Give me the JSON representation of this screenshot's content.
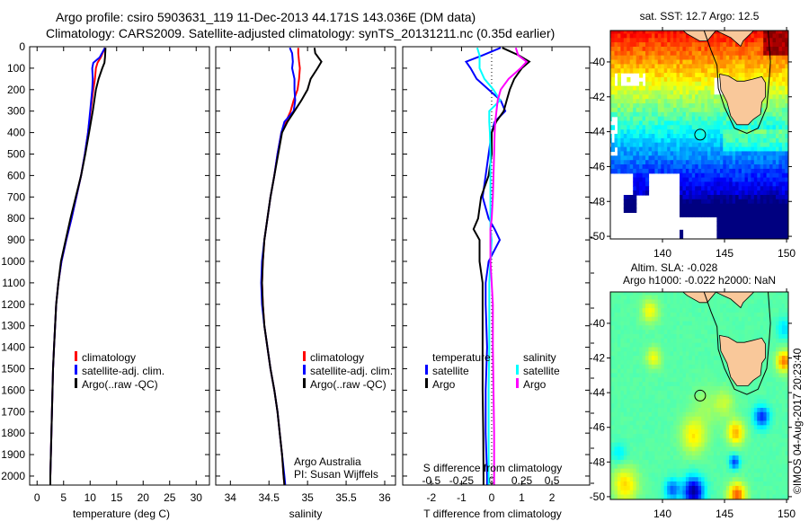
{
  "header": {
    "title_line1": "Argo profile: csiro 5903631_119 11-Dec-2013 44.171S 143.036E (DM data)",
    "title_line2": "Climatology: CARS2009. Satellite-adjusted climatology: synTS_20131211.nc (0.35d earlier)"
  },
  "credit": {
    "org_line1": "Argo Australia",
    "org_line2": "PI: Susan Wijffels",
    "stamp": "©IMOS 04-Aug-2017 20:23:40"
  },
  "chart_data": [
    {
      "id": "temperature",
      "type": "line",
      "xlabel": "temperature (deg C)",
      "ylabel": "",
      "xlim": [
        -1.4,
        32.5
      ],
      "ylim": [
        2042,
        0
      ],
      "xticks": [
        "0",
        "5",
        "10",
        "15",
        "20",
        "25",
        "30"
      ],
      "xtick_values": [
        0,
        5,
        10,
        15,
        20,
        25,
        30
      ],
      "yticks": [
        "0",
        "100",
        "200",
        "300",
        "400",
        "500",
        "600",
        "700",
        "800",
        "900",
        "1000",
        "1100",
        "1200",
        "1300",
        "1400",
        "1500",
        "1600",
        "1700",
        "1800",
        "1900",
        "2000"
      ],
      "ytick_values": [
        0,
        100,
        200,
        300,
        400,
        500,
        600,
        700,
        800,
        900,
        1000,
        1100,
        1200,
        1300,
        1400,
        1500,
        1600,
        1700,
        1800,
        1900,
        2000
      ],
      "legend": [
        "climatology",
        "satellite-adj. clim.",
        "Argo(..raw -QC)"
      ],
      "legend_position": "lower-left",
      "depth": [
        5,
        50,
        75,
        100,
        150,
        200,
        300,
        400,
        500,
        600,
        700,
        800,
        900,
        1000,
        1100,
        1200,
        1300,
        1400,
        1500,
        1600,
        1700,
        1800,
        1900,
        2000,
        2040
      ],
      "series": [
        {
          "name": "climatology",
          "color": "#ff0000",
          "values": [
            12.8,
            12.0,
            11.4,
            11.1,
            10.9,
            10.6,
            10.1,
            9.6,
            9.0,
            8.3,
            7.4,
            6.5,
            5.5,
            4.6,
            4.0,
            3.6,
            3.4,
            3.2,
            3.0,
            2.9,
            2.8,
            2.7,
            2.6,
            2.5,
            2.5
          ]
        },
        {
          "name": "satellite-adj. clim.",
          "color": "#0000ff",
          "values": [
            12.8,
            11.8,
            10.6,
            10.4,
            10.5,
            10.4,
            10.0,
            9.6,
            9.0,
            8.3,
            7.4,
            6.5,
            5.5,
            4.6,
            4.0,
            3.6,
            3.4,
            3.2,
            3.0,
            2.9,
            2.8,
            2.7,
            2.6,
            2.5,
            2.5
          ]
        },
        {
          "name": "Argo(..raw -QC)",
          "color": "#000000",
          "values": [
            12.9,
            12.8,
            12.7,
            12.3,
            11.6,
            11.1,
            10.5,
            9.8,
            9.1,
            8.3,
            7.3,
            6.3,
            5.4,
            4.5,
            4.0,
            3.6,
            3.4,
            3.2,
            3.0,
            2.9,
            2.8,
            2.7,
            2.6,
            2.5,
            2.5
          ]
        }
      ]
    },
    {
      "id": "salinity",
      "type": "line",
      "xlabel": "salinity",
      "xlim": [
        33.81,
        36.14
      ],
      "ylim": [
        2042,
        0
      ],
      "xticks": [
        "34",
        "34.5",
        "35",
        "35.5",
        "36"
      ],
      "xtick_values": [
        34,
        34.5,
        35,
        35.5,
        36
      ],
      "legend": [
        "climatology",
        "satellite-adj. clim.",
        "Argo(..raw -QC)"
      ],
      "legend_position": "lower-left",
      "depth": [
        5,
        30,
        70,
        100,
        150,
        200,
        250,
        300,
        350,
        400,
        500,
        600,
        700,
        800,
        900,
        1000,
        1100,
        1200,
        1300,
        1400,
        1500,
        1600,
        1700,
        1800,
        1900,
        2000,
        2040
      ],
      "series": [
        {
          "name": "climatology",
          "color": "#ff0000",
          "values": [
            34.88,
            34.88,
            34.89,
            34.9,
            34.89,
            34.87,
            34.82,
            34.78,
            34.72,
            34.66,
            34.61,
            34.57,
            34.52,
            34.48,
            34.44,
            34.42,
            34.41,
            34.42,
            34.44,
            34.48,
            34.52,
            34.57,
            34.61,
            34.64,
            34.67,
            34.69,
            34.7
          ]
        },
        {
          "name": "satellite-adj. clim.",
          "color": "#0000ff",
          "values": [
            34.77,
            34.8,
            34.81,
            34.8,
            34.83,
            34.83,
            34.84,
            34.82,
            34.7,
            34.66,
            34.61,
            34.57,
            34.52,
            34.48,
            34.44,
            34.41,
            34.4,
            34.41,
            34.44,
            34.48,
            34.52,
            34.57,
            34.61,
            34.64,
            34.67,
            34.7,
            34.71
          ]
        },
        {
          "name": "Argo(..raw -QC)",
          "color": "#000000",
          "values": [
            35.09,
            35.1,
            35.18,
            35.13,
            35.04,
            35.0,
            34.92,
            34.83,
            34.74,
            34.67,
            34.62,
            34.57,
            34.52,
            34.48,
            34.44,
            34.42,
            34.41,
            34.42,
            34.44,
            34.48,
            34.52,
            34.57,
            34.61,
            34.64,
            34.67,
            34.69,
            34.7
          ]
        }
      ]
    },
    {
      "id": "difference",
      "type": "line",
      "xlabel": "T difference from climatology",
      "x2label": "S difference from climatology",
      "xlim": [
        -2.95,
        3.25
      ],
      "ylim": [
        2042,
        0
      ],
      "xticks": [
        "-2",
        "-1",
        "0",
        "1",
        "2"
      ],
      "xtick_values": [
        -2,
        -1,
        0,
        1,
        2
      ],
      "x2ticks": [
        "-0.5",
        "-0.25",
        "0",
        "0.25",
        "0.5"
      ],
      "x2tick_values": [
        -0.5,
        -0.25,
        0,
        0.25,
        0.5
      ],
      "legend_temperature_title": "temperature",
      "legend_salinity_title": "salinity",
      "legend": [
        "satellite",
        "Argo",
        "satellite",
        "Argo"
      ],
      "depth": [
        5,
        40,
        70,
        100,
        150,
        200,
        250,
        300,
        350,
        400,
        500,
        600,
        700,
        800,
        850,
        900,
        1000,
        1100,
        1200,
        1400,
        1600,
        1800,
        2000,
        2040
      ],
      "series": [
        {
          "name": "temperature satellite",
          "color": "#0000ff",
          "axis": "T",
          "values": [
            0.3,
            -0.3,
            -0.85,
            -0.7,
            -0.5,
            -0.1,
            0.3,
            0.45,
            0.1,
            0.0,
            -0.1,
            -0.2,
            -0.3,
            -0.1,
            0.1,
            0.27,
            -0.1,
            -0.2,
            -0.2,
            -0.15,
            -0.2,
            -0.2,
            -0.15,
            -0.15
          ]
        },
        {
          "name": "temperature Argo",
          "color": "#000000",
          "axis": "T",
          "values": [
            0.35,
            0.9,
            1.25,
            1.0,
            0.75,
            0.6,
            0.5,
            0.4,
            0.15,
            0.0,
            0.0,
            -0.1,
            -0.35,
            -0.45,
            -0.6,
            -0.4,
            -0.4,
            -0.3,
            -0.3,
            -0.3,
            -0.3,
            -0.28,
            -0.27,
            -0.27
          ]
        },
        {
          "name": "salinity satellite",
          "color": "#00ffff",
          "axis": "S",
          "values": [
            -0.12,
            -0.1,
            -0.1,
            -0.1,
            -0.06,
            0.015,
            0.07,
            -0.02,
            -0.02,
            -0.015,
            -0.01,
            -0.01,
            -0.01,
            -0.01,
            -0.01,
            0.0,
            -0.01,
            -0.02,
            -0.02,
            -0.02,
            -0.025,
            -0.025,
            -0.025,
            -0.025
          ]
        },
        {
          "name": "salinity Argo",
          "color": "#ff00ff",
          "axis": "S",
          "values": [
            0.2,
            0.22,
            0.29,
            0.24,
            0.14,
            0.075,
            0.05,
            0.04,
            0.03,
            0.025,
            0.02,
            0.015,
            0.01,
            0.0,
            -0.01,
            -0.01,
            -0.01,
            0.0,
            0.01,
            0.01,
            0.015,
            0.02,
            0.02,
            0.02
          ]
        }
      ]
    },
    {
      "id": "sst-map",
      "type": "heatmap",
      "title": "sat. SST: 12.7 Argo: 12.5",
      "xlim": [
        135.8,
        150.14
      ],
      "ylim": [
        -50.15,
        -38.2
      ],
      "xticks": [
        "140",
        "145",
        "150"
      ],
      "xtick_values": [
        140,
        145,
        150
      ],
      "yticks": [
        "-40",
        "-42",
        "-44",
        "-46",
        "-48",
        "-50"
      ],
      "ytick_values": [
        -40,
        -42,
        -44,
        -46,
        -48,
        -50
      ],
      "color_range": [
        8.5,
        18.5
      ],
      "profile_location": [
        143.036,
        -44.171
      ]
    },
    {
      "id": "sla-map",
      "type": "heatmap",
      "title_line1": "Altim. SLA: -0.028",
      "title_line2": "Argo h1000: -0.022 h2000: NaN",
      "xlim": [
        135.8,
        150.14
      ],
      "ylim": [
        -50.16,
        -38.19
      ],
      "xticks": [
        "140",
        "145",
        "150"
      ],
      "xtick_values": [
        140,
        145,
        150
      ],
      "yticks": [
        "-40",
        "-42",
        "-44",
        "-46",
        "-48",
        "-50"
      ],
      "ytick_values": [
        -40,
        -42,
        -44,
        -46,
        -48,
        -50
      ],
      "color_range": [
        -0.25,
        0.25
      ],
      "profile_location": [
        143.036,
        -44.171
      ]
    }
  ],
  "colors": {
    "land": "#f9c89a",
    "frame": "#000000"
  }
}
